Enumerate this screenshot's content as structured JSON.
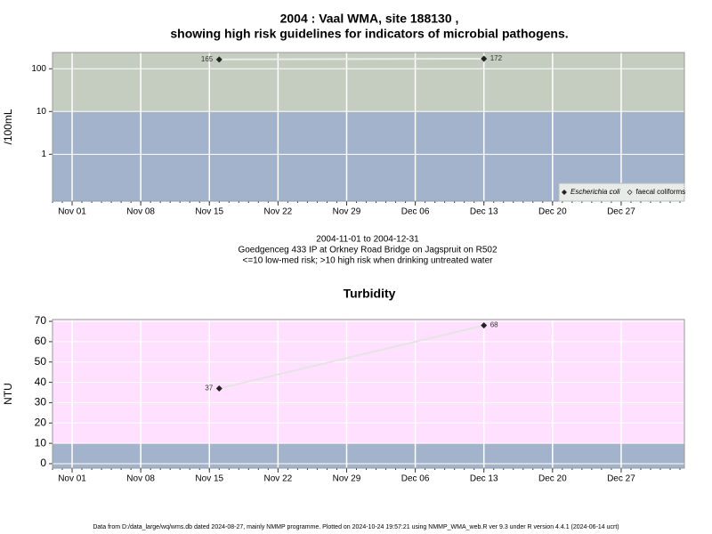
{
  "chart_data": [
    {
      "type": "line",
      "title": [
        "2004 : Vaal WMA, site 188130 ,",
        "showing high risk guidelines for indicators of microbial pathogens."
      ],
      "subtitle": [
        "2004-11-01 to 2004-12-31",
        "Goedgenceg 433 IP at Orkney Road Bridge on Jagspruit on R502",
        "<=10 low-med risk; >10 high risk when drinking untreated water"
      ],
      "y_label": "/100mL",
      "log_y": true,
      "ylim": [
        0.08,
        240
      ],
      "yticks": [
        1,
        10,
        100
      ],
      "xlim": [
        "2004-10-30",
        "2004-12-31"
      ],
      "xticks": [
        {
          "value": "2004-11-01",
          "label": "Nov 01"
        },
        {
          "value": "2004-11-08",
          "label": "Nov 08"
        },
        {
          "value": "2004-11-15",
          "label": "Nov 15"
        },
        {
          "value": "2004-11-22",
          "label": "Nov 22"
        },
        {
          "value": "2004-11-29",
          "label": "Nov 29"
        },
        {
          "value": "2004-12-06",
          "label": "Dec 06"
        },
        {
          "value": "2004-12-13",
          "label": "Dec 13"
        },
        {
          "value": "2004-12-20",
          "label": "Dec 20"
        },
        {
          "value": "2004-12-27",
          "label": "Dec 27"
        }
      ],
      "guideline": 10,
      "band_colors": [
        "#a3b3cb",
        "#c4cdc0"
      ],
      "grid": true,
      "legend": "lower right",
      "x": [
        "2004-11-16",
        "2004-12-13"
      ],
      "series": [
        {
          "name": "Escherichia coli",
          "color": "#222222",
          "line_color": "#e8ece6",
          "values": [
            165,
            172
          ]
        },
        {
          "name": "faecal coliforms",
          "color": "#222222",
          "line_color": "#e8ece6",
          "values": [
            null,
            null
          ]
        }
      ]
    },
    {
      "type": "line",
      "title": [
        "Turbidity"
      ],
      "y_label": "NTU",
      "log_y": false,
      "ylim": [
        -2.2,
        70.9
      ],
      "yticks": [
        0,
        10,
        20,
        30,
        40,
        50,
        60,
        70
      ],
      "xlim": [
        "2004-10-30",
        "2004-12-31"
      ],
      "xticks": [
        {
          "value": "2004-11-01",
          "label": "Nov 01"
        },
        {
          "value": "2004-11-08",
          "label": "Nov 08"
        },
        {
          "value": "2004-11-15",
          "label": "Nov 15"
        },
        {
          "value": "2004-11-22",
          "label": "Nov 22"
        },
        {
          "value": "2004-11-29",
          "label": "Nov 29"
        },
        {
          "value": "2004-12-06",
          "label": "Dec 06"
        },
        {
          "value": "2004-12-13",
          "label": "Dec 13"
        },
        {
          "value": "2004-12-20",
          "label": "Dec 20"
        },
        {
          "value": "2004-12-27",
          "label": "Dec 27"
        }
      ],
      "guideline": 10,
      "band_colors": [
        "#a3b3cb",
        "#ffe0ff"
      ],
      "grid": true,
      "x": [
        "2004-11-16",
        "2004-12-13"
      ],
      "series": [
        {
          "name": "Turbidity",
          "color": "#222222",
          "line_color": "#e4e4e4",
          "values": [
            37,
            68
          ]
        }
      ]
    }
  ],
  "footer": "Data from D:/data_large/wq/wms.db dated 2024-08-27, mainly NMMP programme. Plotted on 2024-10-24 19:57:21 using NMMP_WMA_web.R ver 9.3 under R version 4.4.1 (2024-06-14 ucrt)"
}
